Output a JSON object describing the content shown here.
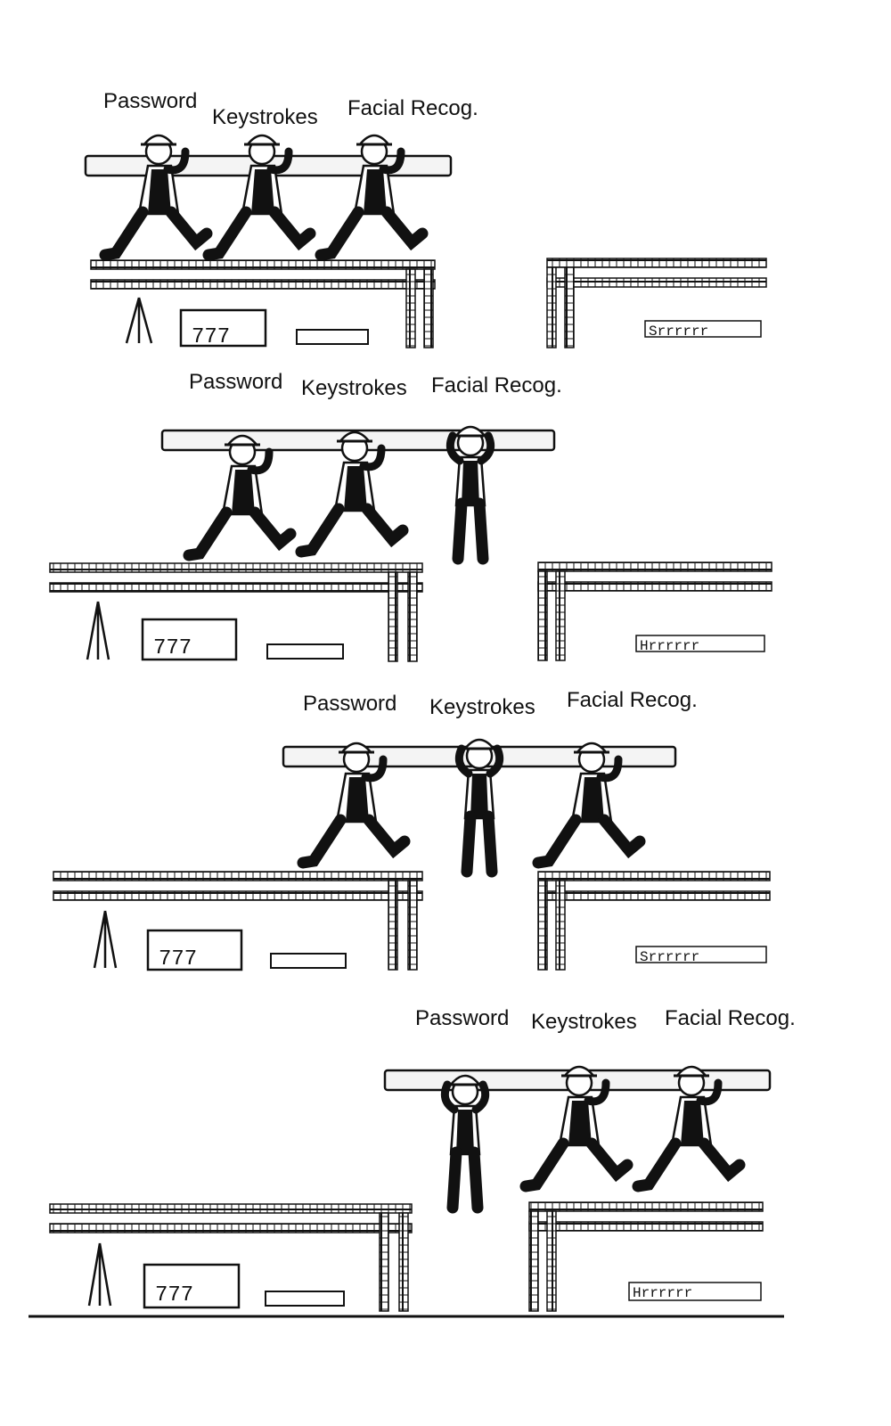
{
  "panels": [
    {
      "labels": {
        "password": "Password",
        "keystrokes": "Keystrokes",
        "facial": "Facial Recog."
      }
    },
    {
      "labels": {
        "password": "Password",
        "keystrokes": "Keystrokes",
        "facial": "Facial Recog."
      }
    },
    {
      "labels": {
        "password": "Password",
        "keystrokes": "Keystrokes",
        "facial": "Facial Recog."
      }
    },
    {
      "labels": {
        "password": "Password",
        "keystrokes": "Keystrokes",
        "facial": "Facial Recog."
      }
    }
  ],
  "colors": {
    "ink": "#111111",
    "paper": "#ffffff",
    "beam": "#f4f4f4"
  }
}
